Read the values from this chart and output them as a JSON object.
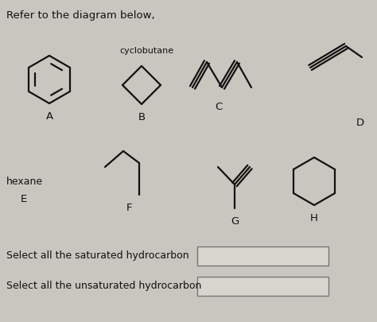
{
  "title": "Refer to the diagram below,",
  "background_color": "#c9c5bf",
  "text_color": "#111111",
  "label_A": "A",
  "label_B": "B",
  "label_C": "C",
  "label_D": "D",
  "label_E": "E",
  "label_F": "F",
  "label_G": "G",
  "label_H": "H",
  "label_cyclobutane": "cyclobutane",
  "label_hexane": "hexane",
  "label_saturated": "Select all the saturated hydrocarbon",
  "label_unsaturated": "Select all the unsaturated hydrocarbon",
  "figsize": [
    4.74,
    4.05
  ],
  "dpi": 100
}
